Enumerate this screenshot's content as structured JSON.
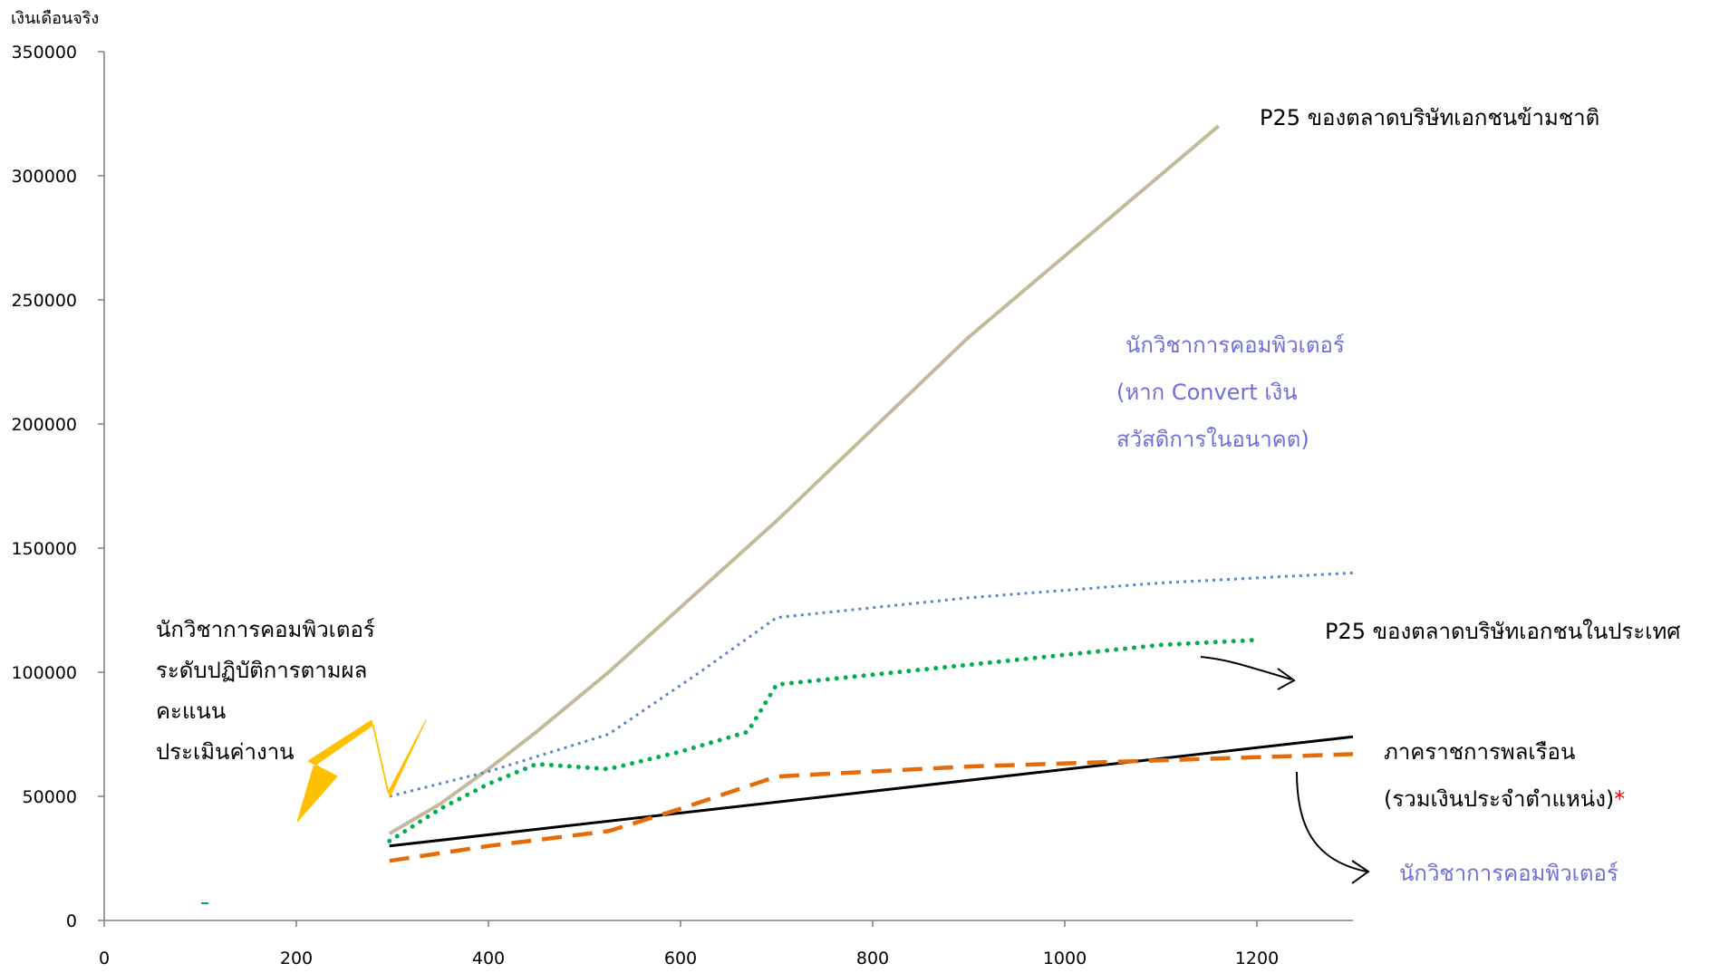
{
  "chart_data": {
    "type": "line",
    "ylabel": "เงินเดือนจริง",
    "xlabel": "",
    "xlim": [
      0,
      1300
    ],
    "ylim": [
      0,
      350000
    ],
    "xticks": [
      0,
      200,
      400,
      600,
      800,
      1000,
      1200
    ],
    "yticks": [
      0,
      50000,
      100000,
      150000,
      200000,
      250000,
      300000,
      350000
    ],
    "grid": false,
    "series": [
      {
        "name": "P25 ของตลาดบริษัทเอกชนข้ามชาติ",
        "style": "solid",
        "color": "#c4b99b",
        "points": [
          [
            297,
            35000
          ],
          [
            350,
            47000
          ],
          [
            400,
            61000
          ],
          [
            450,
            76000
          ],
          [
            525,
            100000
          ],
          [
            700,
            161000
          ],
          [
            900,
            235000
          ],
          [
            1160,
            320000
          ]
        ]
      },
      {
        "name": "นักวิชาการคอมพิวเตอร์ (หาก Convert เงิน สวัสดิการในอนาคต)",
        "style": "dotted-fine",
        "color": "#5b87c9",
        "points": [
          [
            297,
            50000
          ],
          [
            400,
            60000
          ],
          [
            525,
            75000
          ],
          [
            620,
            100000
          ],
          [
            700,
            122000
          ],
          [
            900,
            130000
          ],
          [
            1100,
            136000
          ],
          [
            1300,
            140000
          ]
        ]
      },
      {
        "name": "P25 ของตลาดบริษัทเอกชนในประเทศ",
        "style": "dotted-thick",
        "color": "#00b050",
        "points": [
          [
            297,
            32000
          ],
          [
            350,
            45000
          ],
          [
            400,
            55000
          ],
          [
            450,
            63000
          ],
          [
            525,
            61000
          ],
          [
            600,
            68000
          ],
          [
            670,
            76000
          ],
          [
            700,
            95000
          ],
          [
            900,
            103000
          ],
          [
            1100,
            111000
          ],
          [
            1200,
            113000
          ]
        ]
      },
      {
        "name": "ภาคราชการพลเรือน (รวมเงินประจำตำแหน่ง)*",
        "style": "solid",
        "color": "#000000",
        "points": [
          [
            297,
            30000
          ],
          [
            1300,
            74000
          ]
        ]
      },
      {
        "name": "นักวิชาการคอมพิวเตอร์",
        "style": "dashed",
        "color": "#e46c0a",
        "points": [
          [
            297,
            24000
          ],
          [
            400,
            30000
          ],
          [
            525,
            36000
          ],
          [
            600,
            45000
          ],
          [
            700,
            58000
          ],
          [
            900,
            62000
          ],
          [
            1300,
            67000
          ]
        ]
      }
    ]
  },
  "annotations": {
    "mnc": "P25 ของตลาดบริษัทเอกชนข้ามชาติ",
    "convert_line1": "นักวิชาการคอมพิวเตอร์",
    "convert_line2": "(หาก Convert เงิน",
    "convert_line3": "สวัสดิการในอนาคต)",
    "domestic": "P25 ของตลาดบริษัทเอกชนในประเทศ",
    "civil_line1": "ภาคราชการพลเรือน",
    "civil_line2": "(รวมเงินประจำตำแหน่ง)",
    "civil_asterisk": "*",
    "computer": "นักวิชาการคอมพิวเตอร์",
    "left_line1": "นักวิชาการคอมพิวเตอร์",
    "left_line2": "ระดับปฏิบัติการตามผล",
    "left_line3": "คะแนน",
    "left_line4": "ประเมินค่างาน"
  },
  "colors": {
    "annotation_blue": "#6f6fd8",
    "asterisk_red": "#ff0000",
    "arrow_yellow": "#ffc000"
  }
}
